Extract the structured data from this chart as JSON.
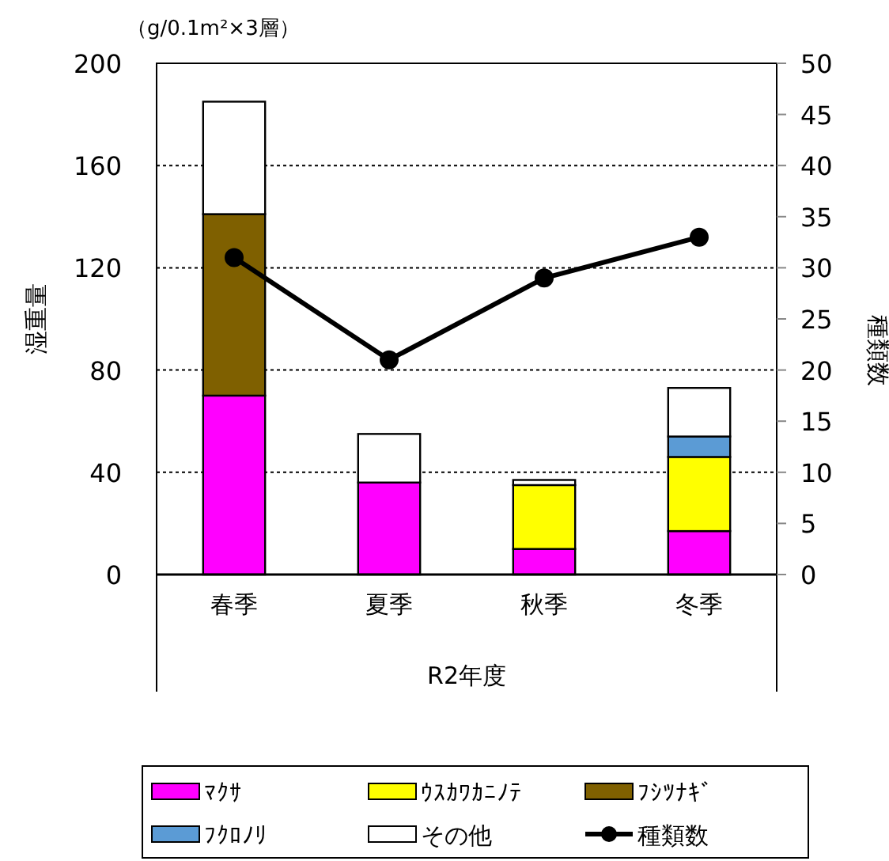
{
  "chart_data": {
    "type": "bar",
    "stacked": true,
    "ylabel": "湿重量",
    "y2label": "種類数",
    "xlabel": "R2年度",
    "annotations": [
      "（g/0.1m²×3層）"
    ],
    "categories": [
      "春季",
      "夏季",
      "秋季",
      "冬季"
    ],
    "ylim": [
      0,
      200
    ],
    "yticks": [
      0,
      40,
      80,
      120,
      160,
      200
    ],
    "y2lim": [
      0,
      50
    ],
    "y2ticks": [
      0,
      5,
      10,
      15,
      20,
      25,
      30,
      35,
      40,
      45,
      50
    ],
    "grid": "y",
    "legend": "bottom",
    "series": [
      {
        "name": "ﾏｸｻ",
        "color": "#ff00ff",
        "values": [
          70,
          36,
          10,
          17
        ]
      },
      {
        "name": "ｳｽｶﾜｶﾆﾉﾃ",
        "color": "#ffff00",
        "values": [
          null,
          null,
          25,
          29
        ]
      },
      {
        "name": "ﾌｼﾂﾅｷﾞ",
        "color": "#7f6000",
        "values": [
          71,
          null,
          null,
          null
        ]
      },
      {
        "name": "ﾌｸﾛﾉﾘ",
        "color": "#5b9bd5",
        "values": [
          null,
          null,
          null,
          8
        ]
      },
      {
        "name": "その他",
        "color": "#ffffff",
        "values": [
          44,
          19,
          2,
          19
        ]
      },
      {
        "name": "種類数",
        "type": "line",
        "axis": "y2",
        "color": "#000000",
        "marker": "circle",
        "line_style": "solid",
        "values": [
          31,
          21,
          29,
          33
        ]
      }
    ]
  }
}
